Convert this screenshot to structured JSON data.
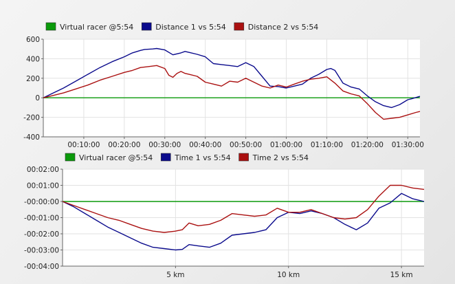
{
  "chart_data": [
    {
      "type": "line",
      "title": "",
      "xlabel": "",
      "ylabel": "",
      "x_unit": "minutes",
      "xlim": [
        0,
        93
      ],
      "ylim": [
        -400,
        600
      ],
      "y_ticks": [
        -400,
        -200,
        0,
        200,
        400,
        600
      ],
      "y_tick_labels": [
        "-400",
        "-200",
        "0",
        "200",
        "400",
        "600"
      ],
      "x_ticks": [
        10,
        20,
        30,
        40,
        50,
        60,
        70,
        80,
        90
      ],
      "x_tick_labels": [
        "00:10:00",
        "00:20:00",
        "00:30:00",
        "00:40:00",
        "00:50:00",
        "01:00:00",
        "01:10:00",
        "01:20:00",
        "01:30:00"
      ],
      "grid": true,
      "legend_position": "top-left",
      "series": [
        {
          "name": "Virtual racer @5:54",
          "color": "#0a9a0a",
          "x": [
            0,
            93
          ],
          "y": [
            0,
            0
          ]
        },
        {
          "name": "Distance 1 vs 5:54",
          "color": "#0a0a8c",
          "x": [
            0,
            2,
            5,
            8,
            11,
            14,
            17,
            20,
            22,
            24,
            25,
            27,
            28,
            30,
            32,
            34,
            35,
            36,
            38,
            40,
            42,
            44,
            46,
            48,
            50,
            52,
            54,
            56,
            58,
            60,
            62,
            64,
            66,
            68,
            70,
            71,
            72,
            74,
            76,
            78,
            80,
            82,
            84,
            86,
            88,
            90,
            91,
            93
          ],
          "y": [
            0,
            40,
            100,
            170,
            240,
            310,
            370,
            420,
            460,
            485,
            495,
            500,
            505,
            490,
            440,
            460,
            475,
            465,
            445,
            420,
            350,
            340,
            330,
            320,
            360,
            320,
            220,
            120,
            115,
            100,
            120,
            140,
            200,
            240,
            290,
            300,
            280,
            150,
            110,
            90,
            20,
            -40,
            -80,
            -100,
            -70,
            -20,
            -10,
            15
          ]
        },
        {
          "name": "Distance 2 vs 5:54",
          "color": "#aa1010",
          "x": [
            0,
            2,
            5,
            8,
            11,
            14,
            17,
            20,
            22,
            24,
            26,
            28,
            30,
            31,
            32,
            33,
            34,
            35,
            36,
            38,
            40,
            42,
            44,
            46,
            48,
            50,
            52,
            54,
            56,
            58,
            60,
            62,
            64,
            66,
            68,
            70,
            72,
            74,
            76,
            78,
            80,
            82,
            84,
            86,
            88,
            90,
            92,
            93
          ],
          "y": [
            0,
            20,
            50,
            90,
            130,
            180,
            220,
            260,
            280,
            310,
            320,
            330,
            300,
            230,
            210,
            250,
            270,
            250,
            240,
            220,
            160,
            140,
            120,
            170,
            160,
            200,
            160,
            120,
            100,
            130,
            110,
            140,
            170,
            190,
            200,
            215,
            150,
            70,
            40,
            20,
            -60,
            -150,
            -220,
            -210,
            -200,
            -175,
            -150,
            -140
          ]
        }
      ]
    },
    {
      "type": "line",
      "title": "",
      "xlabel": "",
      "ylabel": "",
      "x_unit": "km",
      "xlim": [
        0,
        16
      ],
      "ylim": [
        -240,
        120
      ],
      "y_ticks": [
        -240,
        -180,
        -120,
        -60,
        0,
        60,
        120
      ],
      "y_tick_labels": [
        "-00:04:00",
        "-00:03:00",
        "-00:02:00",
        "-00:01:00",
        "-00:00:00",
        "00:01:00",
        "00:02:00"
      ],
      "x_ticks": [
        5,
        10,
        15
      ],
      "x_tick_labels": [
        "5 km",
        "10 km",
        "15 km"
      ],
      "grid": true,
      "legend_position": "top-left",
      "series": [
        {
          "name": "Virtual racer @5:54",
          "color": "#0a9a0a",
          "x": [
            0,
            16
          ],
          "y": [
            0,
            0
          ]
        },
        {
          "name": "Time 1 vs 5:54",
          "color": "#0a0a8c",
          "x": [
            0,
            0.5,
            1,
            1.5,
            2,
            2.5,
            3,
            3.5,
            4,
            4.5,
            5,
            5.3,
            5.6,
            6,
            6.5,
            7,
            7.5,
            8,
            8.5,
            9,
            9.5,
            10,
            10.5,
            11,
            11.5,
            12,
            12.5,
            13,
            13.5,
            14,
            14.5,
            15,
            15.5,
            16
          ],
          "y": [
            0,
            -20,
            -45,
            -70,
            -95,
            -115,
            -135,
            -155,
            -170,
            -175,
            -180,
            -178,
            -160,
            -165,
            -170,
            -155,
            -125,
            -120,
            -115,
            -105,
            -60,
            -40,
            -45,
            -35,
            -45,
            -60,
            -85,
            -105,
            -80,
            -25,
            -5,
            30,
            10,
            0
          ]
        },
        {
          "name": "Time 2 vs 5:54",
          "color": "#aa1010",
          "x": [
            0,
            0.5,
            1,
            1.5,
            2,
            2.5,
            3,
            3.5,
            4,
            4.5,
            5,
            5.3,
            5.6,
            6,
            6.5,
            7,
            7.5,
            8,
            8.5,
            9,
            9.5,
            10,
            10.5,
            11,
            11.5,
            12,
            12.5,
            13,
            13.5,
            14,
            14.5,
            15,
            15.5,
            16
          ],
          "y": [
            0,
            -15,
            -30,
            -45,
            -60,
            -70,
            -85,
            -100,
            -110,
            -115,
            -110,
            -105,
            -80,
            -90,
            -85,
            -70,
            -45,
            -50,
            -55,
            -50,
            -25,
            -40,
            -40,
            -30,
            -45,
            -60,
            -65,
            -60,
            -30,
            20,
            60,
            60,
            50,
            45
          ]
        }
      ]
    }
  ]
}
